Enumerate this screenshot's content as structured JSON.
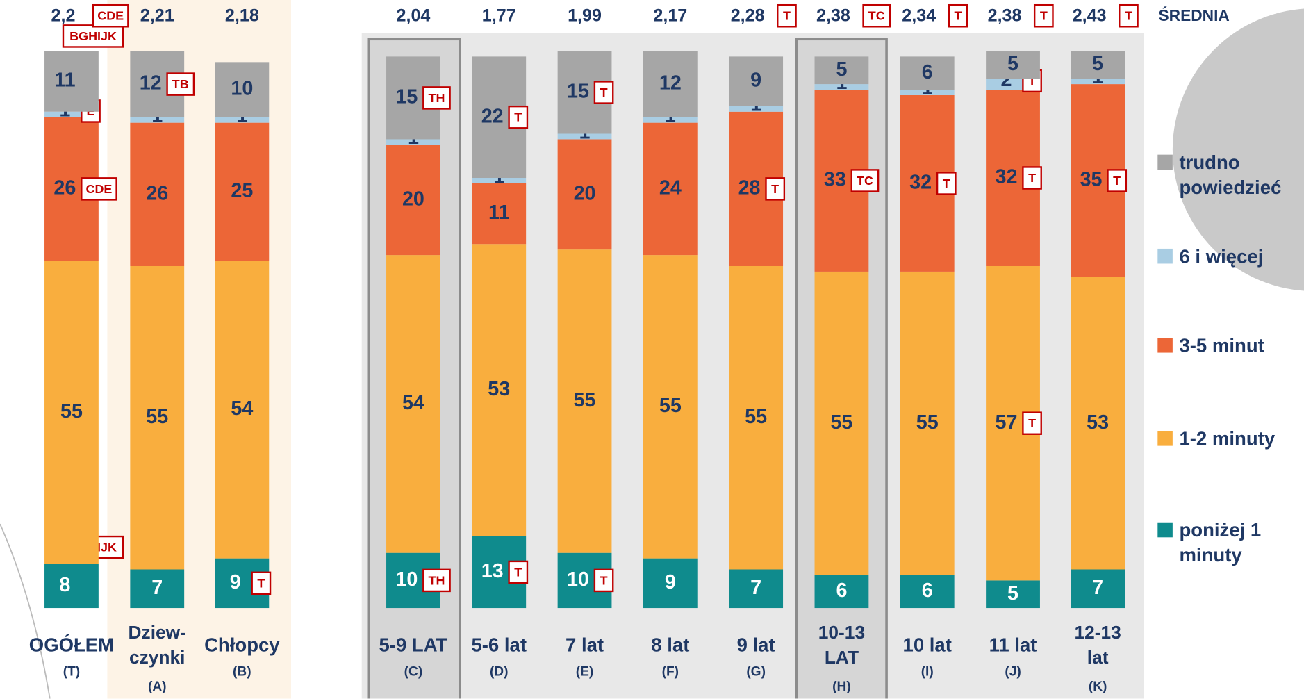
{
  "chart_data": {
    "type": "stacked_bar",
    "categories": [
      [
        "OGÓŁEM"
      ],
      [
        "Dziew-",
        "czynki"
      ],
      [
        "Chłopcy"
      ],
      [
        "5-9 LAT"
      ],
      [
        "5-6 lat"
      ],
      [
        "7 lat"
      ],
      [
        "8 lat"
      ],
      [
        "9 lat"
      ],
      [
        "10-13",
        "LAT"
      ],
      [
        "10 lat"
      ],
      [
        "11 lat"
      ],
      [
        "12-13",
        "lat"
      ]
    ],
    "group_codes": [
      "(T)",
      "(A)",
      "(B)",
      "(C)",
      "(D)",
      "(E)",
      "(F)",
      "(G)",
      "(H)",
      "(I)",
      "(J)",
      "(K)"
    ],
    "ylim": [
      0,
      100
    ],
    "series": [
      {
        "name": "poniżej 1 minuty",
        "color": "#0f8b8d",
        "values": [
          8,
          7,
          9,
          10,
          13,
          10,
          9,
          7,
          6,
          6,
          5,
          7
        ],
        "markers": [
          "AGHIJK",
          null,
          "T",
          "TH",
          "T",
          "T",
          null,
          null,
          null,
          null,
          null,
          null
        ]
      },
      {
        "name": "1-2 minuty",
        "color": "#f9ae3e",
        "values": [
          55,
          55,
          54,
          54,
          53,
          55,
          55,
          55,
          55,
          55,
          57,
          53
        ],
        "markers": [
          null,
          null,
          null,
          null,
          null,
          null,
          null,
          null,
          null,
          null,
          "T",
          null
        ]
      },
      {
        "name": "3-5 minut",
        "color": "#ec6637",
        "values": [
          26,
          26,
          25,
          20,
          11,
          20,
          24,
          28,
          33,
          32,
          32,
          35
        ],
        "markers": [
          "CDE",
          null,
          null,
          null,
          null,
          null,
          null,
          "T",
          "TC",
          "T",
          "T",
          "T"
        ]
      },
      {
        "name": "6 i więcej",
        "color": "#a9cde3",
        "values": [
          1,
          1,
          1,
          1,
          1,
          1,
          1,
          1,
          1,
          1,
          2,
          1
        ],
        "markers": [
          "E",
          null,
          null,
          null,
          null,
          null,
          null,
          null,
          null,
          null,
          "T",
          null
        ]
      },
      {
        "name": "trudno powiedzieć",
        "color": "#a6a6a6",
        "values": [
          11,
          12,
          10,
          15,
          22,
          15,
          12,
          9,
          5,
          6,
          5,
          5
        ],
        "markers": [
          "BGHIJK",
          "TB",
          null,
          "TH",
          "T",
          "T",
          null,
          null,
          null,
          null,
          null,
          null
        ]
      }
    ],
    "averages": {
      "label": "ŚREDNIA",
      "values": [
        2.2,
        2.21,
        2.18,
        2.04,
        1.77,
        1.99,
        2.17,
        2.28,
        2.38,
        2.34,
        2.38,
        2.43
      ],
      "value_labels": [
        "2,2",
        "2,21",
        "2,18",
        "2,04",
        "1,77",
        "1,99",
        "2,17",
        "2,28",
        "2,38",
        "2,34",
        "2,38",
        "2,43"
      ],
      "markers": [
        "CDE",
        null,
        null,
        null,
        null,
        null,
        null,
        "T",
        "TC",
        "T",
        "T",
        "T"
      ]
    }
  }
}
